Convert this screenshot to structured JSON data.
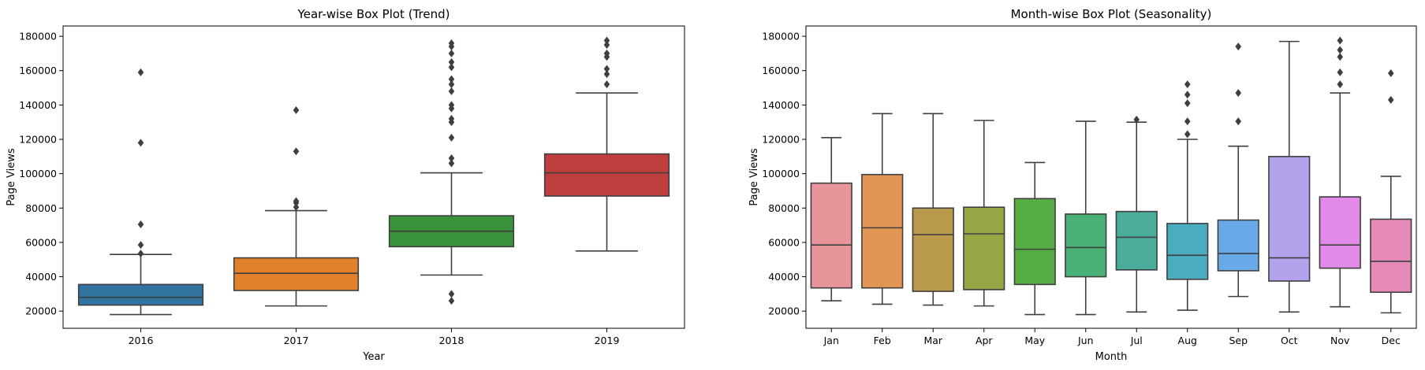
{
  "chart_data": [
    {
      "type": "box",
      "title": "Year-wise Box Plot (Trend)",
      "xlabel": "Year",
      "ylabel": "Page Views",
      "ylim": [
        10000,
        186000
      ],
      "yticks": [
        20000,
        40000,
        60000,
        80000,
        100000,
        120000,
        140000,
        160000,
        180000
      ],
      "grid": false,
      "categories": [
        "2016",
        "2017",
        "2018",
        "2019"
      ],
      "colors": [
        "#3274a1",
        "#e1812c",
        "#3a923a",
        "#c03d3e"
      ],
      "boxes": [
        {
          "category": "2016",
          "whisker_low": 18000,
          "q1": 23500,
          "median": 28000,
          "q3": 35500,
          "whisker_high": 53000,
          "outliers": [
            159000,
            118000,
            70500,
            58500,
            53500
          ]
        },
        {
          "category": "2017",
          "whisker_low": 23000,
          "q1": 32000,
          "median": 42000,
          "q3": 51000,
          "whisker_high": 78500,
          "outliers": [
            137000,
            113000,
            84000,
            83000,
            80500
          ]
        },
        {
          "category": "2018",
          "whisker_low": 41000,
          "q1": 57500,
          "median": 66500,
          "q3": 75500,
          "whisker_high": 100500,
          "outliers": [
            176000,
            174000,
            170000,
            165000,
            162000,
            155000,
            152000,
            148000,
            140000,
            138000,
            132000,
            130000,
            121000,
            109000,
            106000,
            30000,
            26000
          ]
        },
        {
          "category": "2019",
          "whisker_low": 55000,
          "q1": 87000,
          "median": 100500,
          "q3": 111500,
          "whisker_high": 147000,
          "outliers": [
            177500,
            175000,
            170000,
            168000,
            161000,
            158000,
            152000
          ]
        }
      ]
    },
    {
      "type": "box",
      "title": "Month-wise Box Plot (Seasonality)",
      "xlabel": "Month",
      "ylabel": "Page Views",
      "ylim": [
        10000,
        186000
      ],
      "yticks": [
        20000,
        40000,
        60000,
        80000,
        100000,
        120000,
        140000,
        160000,
        180000
      ],
      "grid": false,
      "categories": [
        "Jan",
        "Feb",
        "Mar",
        "Apr",
        "May",
        "Jun",
        "Jul",
        "Aug",
        "Sep",
        "Oct",
        "Nov",
        "Dec"
      ],
      "colors": [
        "#e8949b",
        "#e29656",
        "#b99a4a",
        "#94a744",
        "#56ad43",
        "#4bb277",
        "#4aac9a",
        "#4bacc0",
        "#6aa9e8",
        "#b4a2ec",
        "#e18ae7",
        "#e88ab9"
      ],
      "boxes": [
        {
          "category": "Jan",
          "whisker_low": 26000,
          "q1": 33500,
          "median": 58500,
          "q3": 94500,
          "whisker_high": 121000,
          "outliers": []
        },
        {
          "category": "Feb",
          "whisker_low": 24000,
          "q1": 33500,
          "median": 68500,
          "q3": 99500,
          "whisker_high": 135000,
          "outliers": []
        },
        {
          "category": "Mar",
          "whisker_low": 23500,
          "q1": 31500,
          "median": 64500,
          "q3": 80000,
          "whisker_high": 135000,
          "outliers": []
        },
        {
          "category": "Apr",
          "whisker_low": 23000,
          "q1": 32500,
          "median": 65000,
          "q3": 80500,
          "whisker_high": 131000,
          "outliers": []
        },
        {
          "category": "May",
          "whisker_low": 18000,
          "q1": 35500,
          "median": 56000,
          "q3": 85500,
          "whisker_high": 106500,
          "outliers": []
        },
        {
          "category": "Jun",
          "whisker_low": 18000,
          "q1": 40000,
          "median": 57000,
          "q3": 76500,
          "whisker_high": 130500,
          "outliers": []
        },
        {
          "category": "Jul",
          "whisker_low": 19500,
          "q1": 44000,
          "median": 63000,
          "q3": 78000,
          "whisker_high": 130000,
          "outliers": [
            131500
          ]
        },
        {
          "category": "Aug",
          "whisker_low": 20500,
          "q1": 38500,
          "median": 52500,
          "q3": 71000,
          "whisker_high": 120000,
          "outliers": [
            152000,
            146000,
            141000,
            130500,
            123000
          ]
        },
        {
          "category": "Sep",
          "whisker_low": 28500,
          "q1": 43500,
          "median": 53500,
          "q3": 73000,
          "whisker_high": 116000,
          "outliers": [
            174000,
            147000,
            130500
          ]
        },
        {
          "category": "Oct",
          "whisker_low": 19500,
          "q1": 37500,
          "median": 51000,
          "q3": 110000,
          "whisker_high": 177000,
          "outliers": []
        },
        {
          "category": "Nov",
          "whisker_low": 22500,
          "q1": 45000,
          "median": 58500,
          "q3": 86500,
          "whisker_high": 147000,
          "outliers": [
            177500,
            172000,
            168000,
            159000,
            152000
          ]
        },
        {
          "category": "Dec",
          "whisker_low": 19000,
          "q1": 31000,
          "median": 49000,
          "q3": 73500,
          "whisker_high": 98500,
          "outliers": [
            158500,
            143000
          ]
        }
      ]
    }
  ]
}
